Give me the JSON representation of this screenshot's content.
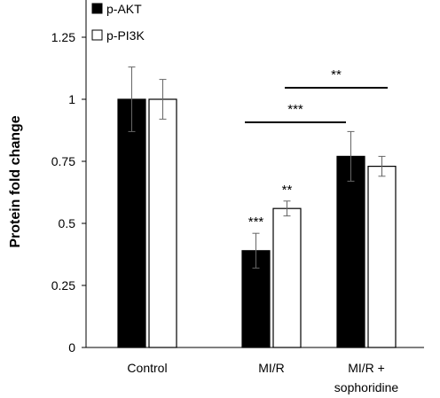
{
  "chart_data": {
    "type": "bar",
    "ylabel": "Protein fold change",
    "ylim": [
      0,
      1.4
    ],
    "yticks": [
      "0",
      "0.25",
      "0.5",
      "0.75",
      "1",
      "1.25"
    ],
    "categories": [
      [
        "Control"
      ],
      [
        "MI/R"
      ],
      [
        "MI/R +",
        "sophoridine"
      ]
    ],
    "legend_position": "top-left",
    "series": [
      {
        "name": "p-AKT",
        "color": "#000000",
        "values": [
          1.0,
          0.39,
          0.77
        ],
        "errors": [
          0.13,
          0.07,
          0.1
        ],
        "annotations": [
          "",
          "***",
          ""
        ]
      },
      {
        "name": "p-PI3K",
        "color": "#ffffff",
        "values": [
          1.0,
          0.56,
          0.73
        ],
        "errors": [
          0.08,
          0.03,
          0.04
        ],
        "annotations": [
          "",
          "**",
          ""
        ]
      }
    ],
    "comparisons": [
      {
        "from": 0,
        "to": 2,
        "label": "***"
      },
      {
        "from": 1,
        "to": 2,
        "label": "**"
      }
    ]
  }
}
